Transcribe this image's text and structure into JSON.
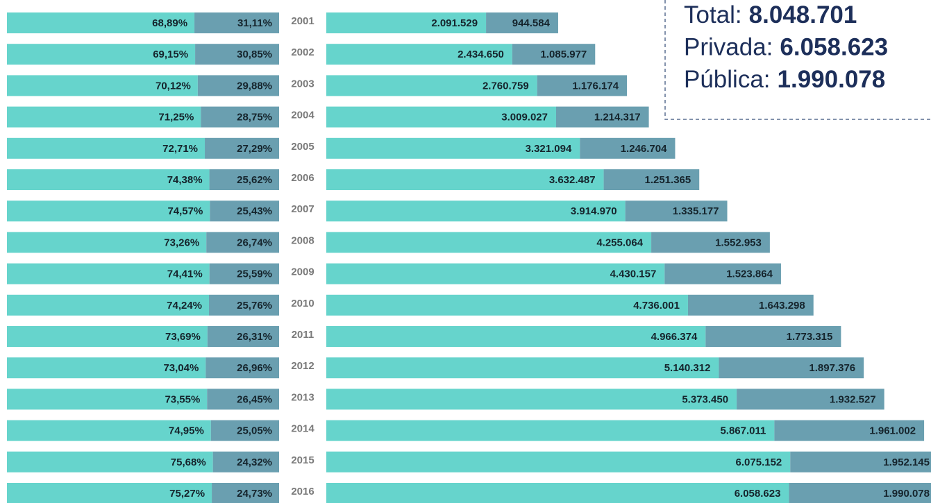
{
  "chart_data": {
    "type": "bar",
    "orientation": "horizontal",
    "stacked": true,
    "categories": [
      "2001",
      "2002",
      "2003",
      "2004",
      "2005",
      "2006",
      "2007",
      "2008",
      "2009",
      "2010",
      "2011",
      "2012",
      "2013",
      "2014",
      "2015",
      "2016"
    ],
    "series": [
      {
        "color": "#66d4cc",
        "values": [
          68.89,
          69.15,
          70.12,
          71.25,
          72.71,
          74.38,
          74.57,
          73.26,
          74.41,
          74.24,
          73.69,
          73.04,
          73.55,
          74.95,
          75.68,
          75.27
        ],
        "value_labels": [
          "68,89%",
          "69,15%",
          "70,12%",
          "71,25%",
          "72,71%",
          "74,38%",
          "74,57%",
          "73,26%",
          "74,41%",
          "74,24%",
          "73,69%",
          "73,04%",
          "73,55%",
          "74,95%",
          "75,68%",
          "75,27%"
        ]
      },
      {
        "color": "#6a9fb0",
        "values": [
          31.11,
          30.85,
          29.88,
          28.75,
          27.29,
          25.62,
          25.43,
          26.74,
          25.59,
          25.76,
          26.31,
          26.96,
          26.45,
          25.05,
          24.32,
          24.73
        ],
        "value_labels": [
          "31,11%",
          "30,85%",
          "29,88%",
          "28,75%",
          "27,29%",
          "25,62%",
          "25,43%",
          "26,74%",
          "25,59%",
          "25,76%",
          "26,31%",
          "26,96%",
          "26,45%",
          "25,05%",
          "24,32%",
          "24,73%"
        ]
      }
    ],
    "count_series": [
      {
        "color": "#66d4cc",
        "values": [
          2091529,
          2434650,
          2760759,
          3009027,
          3321094,
          3632487,
          3914970,
          4255064,
          4430157,
          4736001,
          4966374,
          5140312,
          5373450,
          5867011,
          6075152,
          6058623
        ],
        "value_labels": [
          "2.091.529",
          "2.434.650",
          "2.760.759",
          "3.009.027",
          "3.321.094",
          "3.632.487",
          "3.914.970",
          "4.255.064",
          "4.430.157",
          "4.736.001",
          "4.966.374",
          "5.140.312",
          "5.373.450",
          "5.867.011",
          "6.075.152",
          "6.058.623"
        ]
      },
      {
        "color": "#6a9fb0",
        "values": [
          944584,
          1085977,
          1176174,
          1214317,
          1246704,
          1251365,
          1335177,
          1552953,
          1523864,
          1643298,
          1773315,
          1897376,
          1932527,
          1961002,
          1952145,
          1990078
        ],
        "value_labels": [
          "944.584",
          "1.085.977",
          "1.176.174",
          "1.214.317",
          "1.246.704",
          "1.251.365",
          "1.335.177",
          "1.552.953",
          "1.523.864",
          "1.643.298",
          "1.773.315",
          "1.897.376",
          "1.932.527",
          "1.961.002",
          "1.952.145",
          "1.990.078"
        ]
      }
    ],
    "summary": [
      {
        "label": "Total:",
        "value": "8.048.701"
      },
      {
        "label": "Privada:",
        "value": "6.058.623"
      },
      {
        "label": "Pública:",
        "value": "1.990.078"
      }
    ]
  }
}
